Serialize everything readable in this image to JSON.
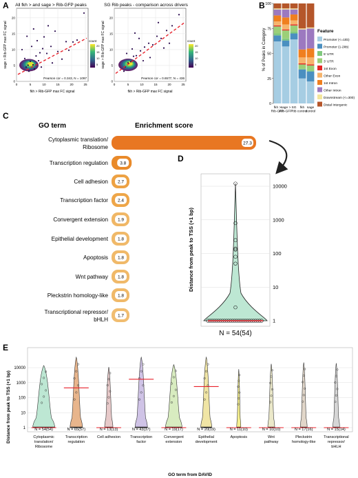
{
  "panels": {
    "A": "A",
    "B": "B",
    "C": "C",
    "D": "D",
    "E": "E"
  },
  "chart_data": [
    {
      "id": "A1",
      "type": "scatter",
      "title": "All fkh > and sage > Rib-GFP peaks",
      "xlabel": "fkh > Rib-GFP max FC signal",
      "ylabel": "sage > Rib-GFP max FC signal",
      "xlim": [
        0,
        26
      ],
      "ylim": [
        0,
        23
      ],
      "xticks": [
        0,
        5,
        10,
        15,
        20,
        25
      ],
      "yticks": [
        0,
        5,
        10,
        15,
        20
      ],
      "colorbar_title": "count",
      "colorbar_ticks": [
        "20",
        "15",
        "10",
        "5"
      ],
      "annotation": "Pearson cor = 0.343, N = 1097",
      "trend": {
        "x0": 0.5,
        "y0": 2.2,
        "x1": 25.5,
        "y1": 13.6,
        "color": "#e8202a"
      },
      "points": [
        [
          3.5,
          4.5
        ],
        [
          4.2,
          5.1
        ],
        [
          5.0,
          6.3
        ],
        [
          6.0,
          5.2
        ],
        [
          7.1,
          8.0
        ],
        [
          4.5,
          3.2
        ],
        [
          8.0,
          6.5
        ],
        [
          9.5,
          10.3
        ],
        [
          11.0,
          8.8
        ],
        [
          6.5,
          3.9
        ],
        [
          3.0,
          7.2
        ],
        [
          12.5,
          11.0
        ],
        [
          15.0,
          9.4
        ],
        [
          18.0,
          12.5
        ],
        [
          10.0,
          14.0
        ],
        [
          5.5,
          11.0
        ],
        [
          2.0,
          10.0
        ],
        [
          14.0,
          15.8
        ],
        [
          20.5,
          12.4
        ],
        [
          24.5,
          21.5
        ],
        [
          7.5,
          12.8
        ],
        [
          9.0,
          4.5
        ],
        [
          13.0,
          5.8
        ],
        [
          16.5,
          7.0
        ],
        [
          3.8,
          14.2
        ],
        [
          6.2,
          16.5
        ],
        [
          19.0,
          9.8
        ],
        [
          11.5,
          17.5
        ],
        [
          22.0,
          13.0
        ],
        [
          8.5,
          9.0
        ]
      ]
    },
    {
      "id": "A2",
      "type": "scatter",
      "title": "SG Rib peaks - comparison across drivers",
      "xlabel": "fkh > Rib-GFP max FC signal",
      "ylabel": "sage > Rib-GFP max FC signal",
      "xlim": [
        0,
        26
      ],
      "ylim": [
        0,
        23
      ],
      "xticks": [
        0,
        5,
        10,
        15,
        20,
        25
      ],
      "yticks": [
        0,
        5,
        10,
        15,
        20
      ],
      "colorbar_title": "count",
      "colorbar_ticks": [
        "20",
        "15",
        "10",
        "5"
      ],
      "annotation": "Pearson cor = 0.6577, N = 436",
      "trend": {
        "x0": 0.5,
        "y0": 2.5,
        "x1": 25.5,
        "y1": 18.5,
        "color": "#e8202a"
      },
      "points": [
        [
          4.0,
          4.6
        ],
        [
          5.0,
          5.8
        ],
        [
          6.0,
          6.2
        ],
        [
          7.0,
          7.9
        ],
        [
          8.0,
          8.1
        ],
        [
          9.5,
          9.6
        ],
        [
          11.0,
          10.8
        ],
        [
          12.5,
          12.0
        ],
        [
          14.0,
          11.5
        ],
        [
          15.5,
          14.2
        ],
        [
          17.0,
          13.5
        ],
        [
          19.0,
          16.0
        ],
        [
          21.0,
          17.5
        ],
        [
          23.5,
          21.0
        ],
        [
          6.5,
          10.2
        ],
        [
          9.0,
          13.5
        ],
        [
          4.5,
          8.8
        ],
        [
          13.0,
          7.5
        ],
        [
          18.0,
          10.5
        ],
        [
          3.5,
          3.2
        ],
        [
          10.5,
          6.5
        ],
        [
          16.0,
          18.5
        ],
        [
          7.5,
          15.2
        ],
        [
          20.0,
          12.0
        ]
      ]
    },
    {
      "id": "B",
      "type": "bar",
      "ylabel": "% of Peaks in Category",
      "ylim": [
        0,
        100
      ],
      "yticks": [
        0,
        25,
        50,
        75,
        100
      ],
      "categories": [
        "fkh >\nRib-GFP",
        "sage >\nRib-GFP",
        "SG\nRib",
        "fkh\ncontrol",
        "sage\ncontrol"
      ],
      "legend_title": "Feature",
      "series": [
        {
          "name": "Promoter (<=1kb)",
          "color": "#a6cde3",
          "values": [
            62,
            57,
            64,
            25,
            22
          ]
        },
        {
          "name": "Promoter (1-2kb)",
          "color": "#4a8fc0",
          "values": [
            6,
            6,
            6,
            9,
            10
          ]
        },
        {
          "name": "5' UTR",
          "color": "#80c97e",
          "values": [
            2,
            2,
            2,
            1,
            1
          ]
        },
        {
          "name": "3' UTR",
          "color": "#9bcf78",
          "values": [
            7,
            8,
            6,
            4,
            5
          ]
        },
        {
          "name": "1st Exon",
          "color": "#e32727",
          "values": [
            1,
            1,
            1,
            1,
            1
          ]
        },
        {
          "name": "Other Exon",
          "color": "#f6b46c",
          "values": [
            4,
            5,
            4,
            6,
            7
          ]
        },
        {
          "name": "1st Intron",
          "color": "#f07f1f",
          "values": [
            6,
            7,
            6,
            8,
            9
          ]
        },
        {
          "name": "Other Intron",
          "color": "#9c79c0",
          "values": [
            6,
            8,
            5,
            20,
            20
          ]
        },
        {
          "name": "Downstream (<=300)",
          "color": "#f4e69c",
          "values": [
            1,
            1,
            1,
            1,
            1
          ]
        },
        {
          "name": "Distal Intergenic",
          "color": "#b5562a",
          "values": [
            5,
            5,
            5,
            25,
            24
          ]
        }
      ]
    },
    {
      "id": "C",
      "type": "bar",
      "title_left": "GO term",
      "title_right": "Enrichment score",
      "categories": [
        "Cytoplasmic translation/\nRibosome",
        "Transcription regulation",
        "Cell adhesion",
        "Transcription factor",
        "Convergent extension",
        "Epithelial development",
        "Apoptosis",
        "Wnt pathway",
        "Pleckstrin homology-like",
        "Transcriptional repressor/\nbHLH"
      ],
      "values": [
        27.3,
        3.8,
        2.7,
        2.4,
        1.9,
        1.8,
        1.8,
        1.8,
        1.8,
        1.7
      ],
      "labels": [
        "27.3",
        "3.8",
        "2.7",
        "2.4",
        "1.9",
        "1.8",
        "1.8",
        "1.8",
        "1.8",
        "1.7"
      ],
      "colors": [
        "#e87722",
        "#e98a2a",
        "#eda244",
        "#eea649",
        "#f0b766",
        "#f0b969",
        "#f0b969",
        "#f0b969",
        "#f0b969",
        "#f1bd70"
      ]
    },
    {
      "id": "D",
      "type": "violin",
      "ylabel": "Distance from peak to TSS (+1 bp)",
      "yscale": "log",
      "yticks": [
        1,
        10,
        100,
        1000,
        10000
      ],
      "ytick_labels": [
        "1",
        "10",
        "100",
        "1000",
        "10000"
      ],
      "fill": "#bde7d3",
      "n_label": "N = 54(54)",
      "median": 1,
      "points": [
        1,
        1,
        1,
        1,
        1,
        1,
        1,
        1,
        1,
        1,
        1,
        1,
        1,
        1,
        1,
        1,
        1,
        1,
        1,
        1,
        1,
        1,
        1,
        1,
        1,
        1,
        1,
        2.5,
        50,
        80,
        130,
        140,
        250,
        800,
        12000
      ]
    },
    {
      "id": "E",
      "type": "violin",
      "xlabel": "GO term from DAVID",
      "ylabel": "Distance from peak to TSS (+1 bp)",
      "yscale": "log",
      "yticks": [
        1,
        10,
        100,
        1000,
        10000
      ],
      "ytick_labels": [
        "1",
        "10",
        "100",
        "1000",
        "10000"
      ],
      "categories": [
        "Cytoplasmic\ntranslation/\nRibosome",
        "Transcription\nregulation",
        "Cell adhesion",
        "Transcription\nfactor",
        "Convergent\nextension",
        "Epithelial\ndevelopment",
        "Apoptosis",
        "Wnt\npathway",
        "Pleckstrin\nhomology-like",
        "Transcriptional\nrepressor/\nbHLH"
      ],
      "n_labels": [
        "N = 54(54)",
        "N = 65(57)",
        "N = 13(13)",
        "N = 43(37)",
        "N = 19(17)",
        "N = 20(19)",
        "N = 11(10)",
        "N = 10(10)",
        "N = 17(16)",
        "N = 15(14)"
      ],
      "fills": [
        "#bde7d3",
        "#e8b58c",
        "#e7c9c9",
        "#cfc3e6",
        "#d8ecc0",
        "#f0e5a5",
        "#f5ef8e",
        "#ebe8c9",
        "#e1d6c9",
        "#d6d6d6"
      ],
      "medians": [
        1,
        450,
        1,
        1700,
        1,
        550,
        1,
        1,
        1,
        1
      ],
      "maxima": [
        14000,
        50000,
        11000,
        50000,
        16000,
        50000,
        8000,
        18000,
        22000,
        20000
      ]
    }
  ]
}
